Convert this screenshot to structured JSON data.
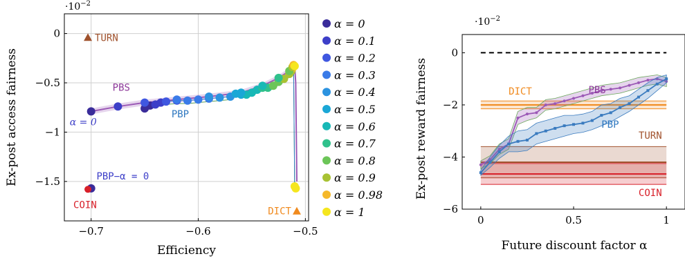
{
  "chart_data": [
    {
      "type": "scatter",
      "xlabel": "Efficiency",
      "ylabel": "Ex-post access fairness",
      "y_scale_label": "·10",
      "y_scale_exponent": "−2",
      "xlim": [
        -0.725,
        -0.497
      ],
      "ylim": [
        -1.9,
        0.2
      ],
      "xticks": [
        -0.7,
        -0.6,
        -0.5
      ],
      "xtick_labels": [
        "−0.7",
        "−0.6",
        "−0.5"
      ],
      "yticks": [
        0,
        -0.5,
        -1,
        -1.5
      ],
      "ytick_labels": [
        "0",
        "−0.5",
        "−1",
        "−1.5"
      ],
      "grid": true,
      "legend_position": "right",
      "legend": [
        {
          "label": "α = 0",
          "color": "#3a2c9a"
        },
        {
          "label": "α = 0.1",
          "color": "#3d3fc8"
        },
        {
          "label": "α = 0.2",
          "color": "#3f57e0"
        },
        {
          "label": "α = 0.3",
          "color": "#3a7be8"
        },
        {
          "label": "α = 0.4",
          "color": "#2c93e0"
        },
        {
          "label": "α = 0.5",
          "color": "#1aa7d6"
        },
        {
          "label": "α = 0.6",
          "color": "#18b8b6"
        },
        {
          "label": "α = 0.7",
          "color": "#30c18c"
        },
        {
          "label": "α = 0.8",
          "color": "#6cc558"
        },
        {
          "label": "α = 0.9",
          "color": "#a8c233"
        },
        {
          "label": "α = 0.98",
          "color": "#f5b82a"
        },
        {
          "label": "α = 1",
          "color": "#f5e61e"
        }
      ],
      "markers": [
        {
          "label": "TURN",
          "x": -0.703,
          "y": -0.04,
          "color": "#a0522d",
          "shape": "triangle"
        },
        {
          "label": "COIN",
          "x": -0.703,
          "y": -1.58,
          "color": "#d8202a",
          "shape": "circle"
        },
        {
          "label": "DICT",
          "x": -0.508,
          "y": -1.8,
          "color": "#f08a1e",
          "shape": "triangle"
        }
      ],
      "annotations": [
        {
          "text": "PBS",
          "x": -0.68,
          "y": -0.58,
          "color": "#8e3a9a"
        },
        {
          "text": "PBP",
          "x": -0.625,
          "y": -0.85,
          "color": "#2f78c0"
        },
        {
          "text": "α = 0",
          "x": -0.72,
          "y": -0.93,
          "color": "#3d3fc8"
        },
        {
          "text": "PBP−α = 0",
          "x": -0.695,
          "y": -1.48,
          "color": "#3d3fc8"
        }
      ],
      "series": [
        {
          "name": "PBS",
          "color": "#9b59b6",
          "x": [
            -0.7,
            -0.675,
            -0.65,
            -0.62,
            -0.59,
            -0.56,
            -0.54,
            -0.525,
            -0.515,
            -0.512,
            -0.511,
            -0.51,
            -0.509,
            -0.508
          ],
          "y": [
            -0.79,
            -0.74,
            -0.7,
            -0.67,
            -0.64,
            -0.6,
            -0.53,
            -0.45,
            -0.38,
            -0.34,
            -0.32,
            -0.33,
            -0.5,
            -1.5
          ]
        },
        {
          "name": "PBP",
          "color": "#2f78c0",
          "x": [
            -0.7,
            -0.65,
            -0.645,
            -0.64,
            -0.635,
            -0.63,
            -0.62,
            -0.61,
            -0.6,
            -0.59,
            -0.58,
            -0.57,
            -0.565,
            -0.56,
            -0.555,
            -0.55,
            -0.545,
            -0.54,
            -0.535,
            -0.53,
            -0.525,
            -0.52,
            -0.515,
            -0.513,
            -0.512,
            -0.511,
            -0.51,
            -0.509
          ],
          "y": [
            -1.57,
            -0.76,
            -0.73,
            -0.72,
            -0.7,
            -0.69,
            -0.68,
            -0.68,
            -0.67,
            -0.66,
            -0.65,
            -0.64,
            -0.61,
            -0.62,
            -0.62,
            -0.6,
            -0.57,
            -0.55,
            -0.55,
            -0.53,
            -0.49,
            -0.46,
            -0.41,
            -0.38,
            -0.35,
            -0.33,
            -1.55,
            -1.57
          ]
        }
      ]
    },
    {
      "type": "line",
      "xlabel": "Future discount factor α",
      "ylabel": "Ex-post reward fairness",
      "y_scale_label": "·10",
      "y_scale_exponent": "−2",
      "xlim": [
        -0.1,
        1.1
      ],
      "ylim": [
        -6,
        0.7
      ],
      "xticks": [
        0,
        0.5,
        1
      ],
      "xtick_labels": [
        "0",
        "0.5",
        "1"
      ],
      "yticks": [
        0,
        -2,
        -4,
        -6
      ],
      "ytick_labels": [
        "0",
        "−2",
        "−4",
        "−6"
      ],
      "grid": false,
      "annotations": [
        {
          "text": "PBS",
          "x": 0.58,
          "y": -1.55,
          "color": "#8e3a9a"
        },
        {
          "text": "DICT",
          "x": 0.15,
          "y": -1.6,
          "color": "#f08a1e"
        },
        {
          "text": "PBP",
          "x": 0.65,
          "y": -2.88,
          "color": "#2f78c0"
        },
        {
          "text": "TURN",
          "x": 0.85,
          "y": -3.3,
          "color": "#a0522d"
        },
        {
          "text": "COIN",
          "x": 0.85,
          "y": -5.5,
          "color": "#d8202a"
        }
      ],
      "reference_line": {
        "y": 0,
        "style": "dashed",
        "color": "#000000"
      },
      "bands": [
        {
          "name": "DICT",
          "mean": -2.0,
          "low": -2.15,
          "high": -1.85,
          "color": "#f08a1e"
        },
        {
          "name": "TURN",
          "mean": -4.2,
          "low": -4.8,
          "high": -3.6,
          "color": "#a0522d"
        },
        {
          "name": "COIN",
          "mean": -4.65,
          "low": -5.05,
          "high": -4.25,
          "color": "#d8202a"
        }
      ],
      "series": [
        {
          "name": "PBS",
          "color": "#9b59b6",
          "x": [
            0,
            0.05,
            0.1,
            0.15,
            0.2,
            0.25,
            0.3,
            0.35,
            0.4,
            0.45,
            0.5,
            0.55,
            0.6,
            0.65,
            0.7,
            0.75,
            0.8,
            0.85,
            0.9,
            0.95,
            1.0
          ],
          "y": [
            -4.3,
            -4.1,
            -3.7,
            -3.5,
            -2.5,
            -2.35,
            -2.3,
            -2.0,
            -1.95,
            -1.85,
            -1.75,
            -1.65,
            -1.55,
            -1.45,
            -1.4,
            -1.35,
            -1.25,
            -1.15,
            -1.05,
            -1.0,
            -1.1
          ],
          "low": [
            -4.45,
            -4.25,
            -3.9,
            -3.7,
            -2.75,
            -2.6,
            -2.5,
            -2.2,
            -2.15,
            -2.05,
            -1.95,
            -1.85,
            -1.75,
            -1.65,
            -1.6,
            -1.55,
            -1.45,
            -1.35,
            -1.25,
            -1.2,
            -1.3
          ],
          "high": [
            -4.15,
            -3.95,
            -3.5,
            -3.3,
            -2.25,
            -2.1,
            -2.1,
            -1.8,
            -1.75,
            -1.65,
            -1.55,
            -1.45,
            -1.35,
            -1.25,
            -1.2,
            -1.15,
            -1.05,
            -0.95,
            -0.9,
            -0.85,
            -0.95
          ]
        },
        {
          "name": "PBP",
          "color": "#3a7bbf",
          "x": [
            0,
            0.05,
            0.1,
            0.15,
            0.2,
            0.25,
            0.3,
            0.35,
            0.4,
            0.45,
            0.5,
            0.55,
            0.6,
            0.65,
            0.7,
            0.75,
            0.8,
            0.85,
            0.9,
            0.95,
            1.0
          ],
          "y": [
            -4.6,
            -4.2,
            -3.8,
            -3.5,
            -3.4,
            -3.35,
            -3.1,
            -3.0,
            -2.9,
            -2.8,
            -2.75,
            -2.7,
            -2.6,
            -2.4,
            -2.3,
            -2.1,
            -1.95,
            -1.7,
            -1.45,
            -1.2,
            -1.0
          ],
          "low": [
            -4.7,
            -4.4,
            -4.05,
            -3.8,
            -3.8,
            -3.75,
            -3.5,
            -3.4,
            -3.3,
            -3.2,
            -3.1,
            -3.05,
            -2.95,
            -2.8,
            -2.65,
            -2.45,
            -2.25,
            -2.0,
            -1.75,
            -1.45,
            -1.15
          ],
          "high": [
            -4.5,
            -4.0,
            -3.55,
            -3.2,
            -3.0,
            -2.95,
            -2.7,
            -2.6,
            -2.5,
            -2.4,
            -2.4,
            -2.35,
            -2.25,
            -2.0,
            -1.95,
            -1.75,
            -1.65,
            -1.4,
            -1.15,
            -0.95,
            -0.85
          ]
        }
      ]
    }
  ]
}
